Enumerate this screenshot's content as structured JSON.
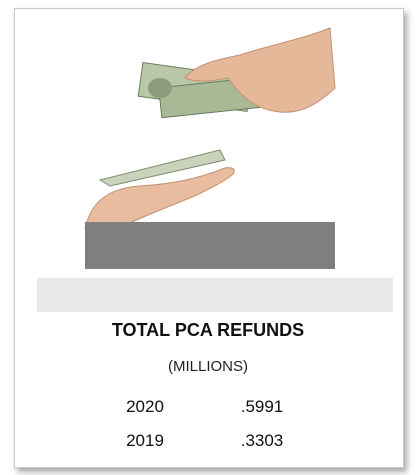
{
  "title": "TOTAL PCA REFUNDS",
  "subtitle": "(MILLIONS)",
  "table": {
    "rows": [
      [
        "2020",
        ".5991"
      ],
      [
        "2019",
        ".3303"
      ]
    ]
  }
}
